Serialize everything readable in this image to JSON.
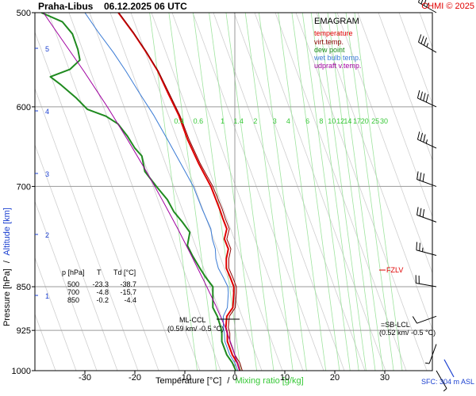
{
  "header": {
    "title": "Praha-Libus",
    "datetime": "06.12.2025 06 UTC",
    "copyright": "CHMI © 2025"
  },
  "legend": {
    "title": "EMAGRAM",
    "items": [
      {
        "label": "temperature",
        "color": "#e00000"
      },
      {
        "label": "virt.temp.",
        "color": "#8b0000"
      },
      {
        "label": "dew point",
        "color": "#1f8a1f"
      },
      {
        "label": "wet bulb temp.",
        "color": "#3a7bd5"
      },
      {
        "label": "udpraft v.temp.",
        "color": "#a000a0"
      }
    ]
  },
  "axes": {
    "ylabel_pressure": "Pressure [hPa]",
    "ylabel_sep": "/",
    "ylabel_altitude": "Altitude [km]",
    "xlabel_temp": "Temperature [°C]",
    "xlabel_sep": "/",
    "xlabel_mixing": "Mixing ratio [g/kg]",
    "pressure_ticks": [
      "500",
      "600",
      "700",
      "850",
      "925",
      "1000"
    ],
    "temp_ticks": [
      "-30",
      "-20",
      "-10",
      "0",
      "10",
      "20",
      "30"
    ],
    "altitude_ticks": [
      "5",
      "4",
      "3",
      "2",
      "1"
    ],
    "mixing_ticks": [
      "0.4",
      "0.6",
      "1",
      "1.4",
      "2",
      "3",
      "4",
      "6",
      "8",
      "10",
      "12",
      "14",
      "17",
      "20",
      "25",
      "30"
    ]
  },
  "table": {
    "header": [
      "p [hPa]",
      "T",
      "Td [°C]"
    ],
    "rows": [
      [
        "500",
        "-23.3",
        "-38.7"
      ],
      [
        "700",
        "-4.8",
        "-15.7"
      ],
      [
        "850",
        "-0.2",
        "-4.4"
      ]
    ]
  },
  "annotations": {
    "fzlv": "FZLV",
    "ml_ccl_1": "ML-CCL",
    "ml_ccl_2": "(0.59 km/ -0.5 °C)",
    "sb_lcl_1": "=SB-LCL",
    "sb_lcl_2": "(0.52 km/ -0.5 °C)",
    "sfc": "SFC: 304 m ASL"
  },
  "chart_data": {
    "type": "line",
    "title": "Praha-Libus 06.12.2025 06 UTC",
    "xlabel": "Temperature [°C] / Mixing ratio [g/kg]",
    "ylabel": "Pressure [hPa] / Altitude [km]",
    "xlim": [
      -40,
      30
    ],
    "ylim_pressure": [
      1000,
      500
    ],
    "y_scale": "log-pressure",
    "grid": true,
    "legend_position": "top-right",
    "series": [
      {
        "name": "temperature",
        "color": "#e00000",
        "points": [
          [
            1,
            1000
          ],
          [
            0.5,
            985
          ],
          [
            -0.5,
            970
          ],
          [
            -1.5,
            945
          ],
          [
            -1.5,
            930
          ],
          [
            -1.8,
            920
          ],
          [
            -1.6,
            900
          ],
          [
            -0.4,
            885
          ],
          [
            -0.2,
            860
          ],
          [
            -0.2,
            850
          ],
          [
            -0.9,
            835
          ],
          [
            -1.7,
            820
          ],
          [
            -1.7,
            805
          ],
          [
            -1.3,
            790
          ],
          [
            -2.1,
            775
          ],
          [
            -1.6,
            760
          ],
          [
            -2.4,
            745
          ],
          [
            -3,
            732
          ],
          [
            -4.8,
            700
          ],
          [
            -7.2,
            670
          ],
          [
            -9.4,
            640
          ],
          [
            -11.2,
            610
          ],
          [
            -13.3,
            585
          ],
          [
            -15.4,
            560
          ],
          [
            -17.7,
            540
          ],
          [
            -20.3,
            520
          ],
          [
            -23.3,
            500
          ]
        ]
      },
      {
        "name": "virt.temp.",
        "color": "#8b0000",
        "points": [
          [
            1.5,
            1000
          ],
          [
            1,
            985
          ],
          [
            0,
            970
          ],
          [
            -1,
            945
          ],
          [
            -1,
            930
          ],
          [
            -1.3,
            920
          ],
          [
            -1.1,
            900
          ],
          [
            0.1,
            885
          ],
          [
            0.3,
            860
          ],
          [
            0.3,
            850
          ],
          [
            -0.4,
            835
          ],
          [
            -1.2,
            820
          ],
          [
            -1.2,
            805
          ],
          [
            -0.8,
            790
          ],
          [
            -1.6,
            775
          ],
          [
            -1.1,
            760
          ],
          [
            -1.9,
            745
          ],
          [
            -2.5,
            732
          ],
          [
            -4.4,
            700
          ],
          [
            -6.9,
            670
          ],
          [
            -9.1,
            640
          ],
          [
            -11,
            610
          ],
          [
            -13.1,
            585
          ],
          [
            -15.3,
            560
          ],
          [
            -17.6,
            540
          ],
          [
            -20.2,
            520
          ],
          [
            -23.2,
            500
          ]
        ]
      },
      {
        "name": "dew point",
        "color": "#1f8a1f",
        "points": [
          [
            0.2,
            1000
          ],
          [
            -0.5,
            985
          ],
          [
            -1.6,
            970
          ],
          [
            -2.6,
            945
          ],
          [
            -2.6,
            930
          ],
          [
            -2.8,
            920
          ],
          [
            -3.5,
            900
          ],
          [
            -4.4,
            885
          ],
          [
            -4.4,
            860
          ],
          [
            -4.4,
            850
          ],
          [
            -5.8,
            835
          ],
          [
            -7,
            820
          ],
          [
            -8.5,
            800
          ],
          [
            -9.5,
            785
          ],
          [
            -9,
            765
          ],
          [
            -10.5,
            750
          ],
          [
            -12.2,
            735
          ],
          [
            -13.5,
            718
          ],
          [
            -15.7,
            700
          ],
          [
            -18,
            680
          ],
          [
            -18.6,
            660
          ],
          [
            -20,
            650
          ],
          [
            -21.5,
            635
          ],
          [
            -23.4,
            620
          ],
          [
            -25.8,
            611
          ],
          [
            -29.5,
            603
          ],
          [
            -31.7,
            590
          ],
          [
            -34.8,
            575
          ],
          [
            -36.9,
            566
          ],
          [
            -33,
            558
          ],
          [
            -31,
            548
          ],
          [
            -31.4,
            537
          ],
          [
            -32.5,
            521
          ],
          [
            -34.5,
            509
          ],
          [
            -38.7,
            500
          ]
        ]
      },
      {
        "name": "wet bulb temp.",
        "color": "#3a7bd5",
        "points": [
          [
            0.6,
            1000
          ],
          [
            0,
            985
          ],
          [
            -1,
            970
          ],
          [
            -2,
            945
          ],
          [
            -2.1,
            930
          ],
          [
            -2.3,
            920
          ],
          [
            -2.3,
            900
          ],
          [
            -1.5,
            885
          ],
          [
            -1.3,
            860
          ],
          [
            -1.4,
            850
          ],
          [
            -2.3,
            835
          ],
          [
            -3.3,
            820
          ],
          [
            -3.8,
            805
          ],
          [
            -3.9,
            790
          ],
          [
            -4.5,
            775
          ],
          [
            -4.8,
            760
          ],
          [
            -5.7,
            745
          ],
          [
            -6.5,
            732
          ],
          [
            -8.3,
            700
          ],
          [
            -10.8,
            670
          ],
          [
            -13.4,
            640
          ],
          [
            -16.2,
            610
          ],
          [
            -19,
            585
          ],
          [
            -21.8,
            560
          ],
          [
            -24.3,
            540
          ],
          [
            -27.2,
            520
          ],
          [
            -30,
            500
          ]
        ]
      },
      {
        "name": "udpraft v.temp.",
        "color": "#a000a0",
        "points": [
          [
            1,
            1000
          ],
          [
            -0.5,
            956
          ],
          [
            -1.9,
            920
          ],
          [
            -3.9,
            880
          ],
          [
            -6.2,
            840
          ],
          [
            -8.7,
            800
          ],
          [
            -11.4,
            760
          ],
          [
            -14.4,
            720
          ],
          [
            -17.7,
            680
          ],
          [
            -21.4,
            640
          ],
          [
            -25.5,
            600
          ],
          [
            -30.2,
            560
          ],
          [
            -35.5,
            520
          ],
          [
            -38.3,
            500
          ]
        ]
      }
    ],
    "wind_barbs": [
      {
        "p": 500,
        "dir": 300,
        "speed_kt": 35
      },
      {
        "p": 540,
        "dir": 300,
        "speed_kt": 35
      },
      {
        "p": 600,
        "dir": 295,
        "speed_kt": 40
      },
      {
        "p": 650,
        "dir": 295,
        "speed_kt": 35
      },
      {
        "p": 700,
        "dir": 290,
        "speed_kt": 30
      },
      {
        "p": 750,
        "dir": 290,
        "speed_kt": 30
      },
      {
        "p": 800,
        "dir": 285,
        "speed_kt": 25
      },
      {
        "p": 850,
        "dir": 280,
        "speed_kt": 20
      },
      {
        "p": 900,
        "dir": 250,
        "speed_kt": 10
      },
      {
        "p": 950,
        "dir": 200,
        "speed_kt": 5
      },
      {
        "p": 1000,
        "dir": 150,
        "speed_kt": 5
      }
    ]
  }
}
